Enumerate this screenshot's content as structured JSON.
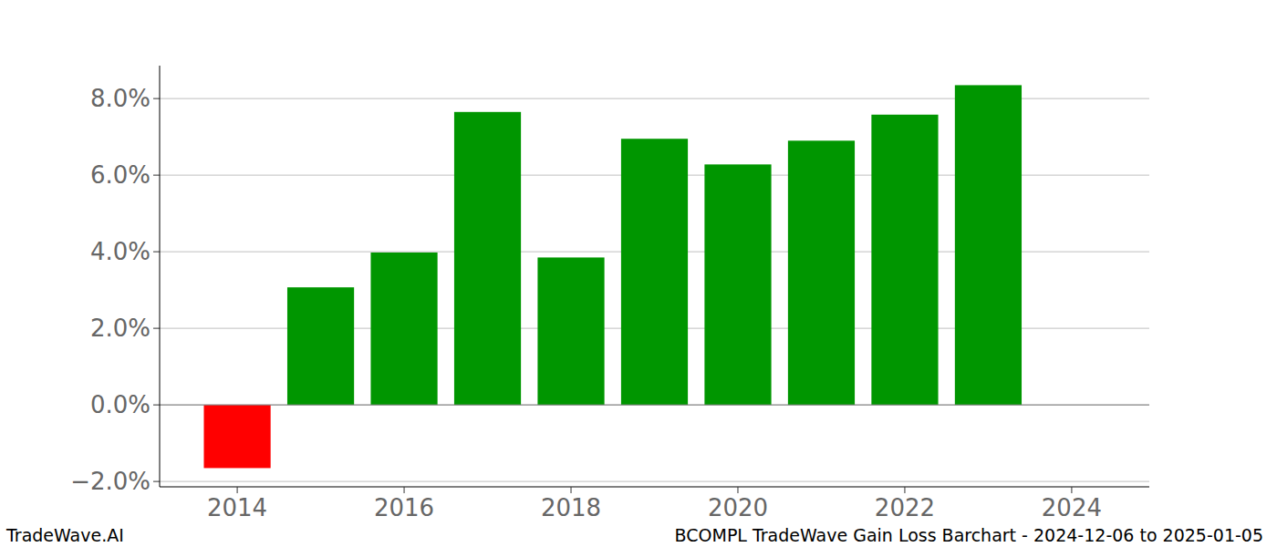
{
  "chart_data": {
    "type": "bar",
    "x": [
      2014,
      2015,
      2016,
      2017,
      2018,
      2019,
      2020,
      2021,
      2022,
      2023
    ],
    "values": [
      -1.65,
      3.07,
      3.98,
      7.65,
      3.85,
      6.95,
      6.28,
      6.9,
      7.58,
      8.35
    ],
    "colors": [
      "#ff0000",
      "#009600",
      "#009600",
      "#009600",
      "#009600",
      "#009600",
      "#009600",
      "#009600",
      "#009600",
      "#009600"
    ],
    "xlim": [
      2013.07,
      2024.93
    ],
    "xticks": [
      2014,
      2016,
      2018,
      2020,
      2022,
      2024
    ],
    "ylim": [
      -2.14,
      8.86
    ],
    "yticks": [
      {
        "value": -2,
        "label": "−2.0%"
      },
      {
        "value": 0,
        "label": "0.0%"
      },
      {
        "value": 2,
        "label": "2.0%"
      },
      {
        "value": 4,
        "label": "4.0%"
      },
      {
        "value": 6,
        "label": "6.0%"
      },
      {
        "value": 8,
        "label": "8.0%"
      }
    ],
    "grid": true,
    "footer_left": "TradeWave.AI",
    "footer_right": "BCOMPL TradeWave Gain Loss Barchart - 2024-12-06 to 2025-01-05"
  }
}
